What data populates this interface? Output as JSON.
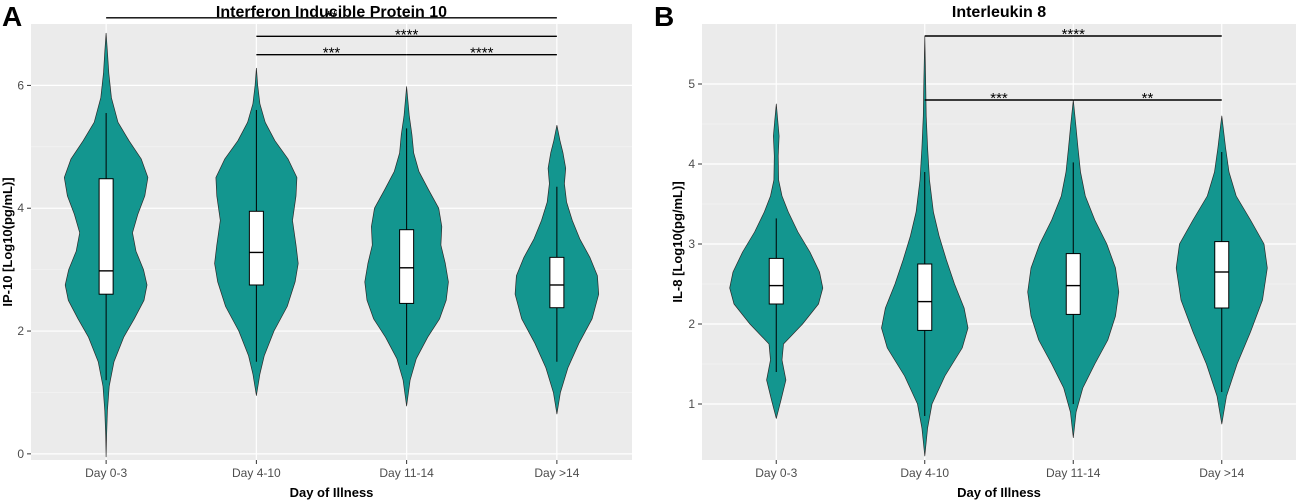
{
  "panels": [
    {
      "letter": "A",
      "chart_data": {
        "type": "violin",
        "title": "Interferon Inducible Protein 10",
        "xlabel": "Day of Illness",
        "ylabel": "IP-10 [Log10(pg/mL)]",
        "categories": [
          "Day 0-3",
          "Day 4-10",
          "Day 11-14",
          "Day >14"
        ],
        "ylim": [
          -0.1,
          7.0
        ],
        "yticks": [
          0,
          2,
          4,
          6
        ],
        "fill_color": "#13968f",
        "panel_bg": "#ebebeb",
        "grid": true,
        "violins": [
          {
            "category": "Day 0-3",
            "y_min": -0.05,
            "y_max": 6.85,
            "q1": 2.6,
            "median": 2.98,
            "q3": 4.48,
            "whisker_low": 1.2,
            "whisker_high": 5.55,
            "density": [
              [
                -0.05,
                0
              ],
              [
                0.3,
                0.01
              ],
              [
                0.7,
                0.03
              ],
              [
                1.1,
                0.07
              ],
              [
                1.5,
                0.18
              ],
              [
                1.9,
                0.4
              ],
              [
                2.2,
                0.64
              ],
              [
                2.5,
                0.86
              ],
              [
                2.75,
                0.93
              ],
              [
                3.0,
                0.85
              ],
              [
                3.3,
                0.68
              ],
              [
                3.6,
                0.6
              ],
              [
                3.9,
                0.72
              ],
              [
                4.2,
                0.88
              ],
              [
                4.5,
                0.95
              ],
              [
                4.8,
                0.8
              ],
              [
                5.1,
                0.52
              ],
              [
                5.4,
                0.27
              ],
              [
                5.8,
                0.12
              ],
              [
                6.2,
                0.06
              ],
              [
                6.55,
                0.03
              ],
              [
                6.85,
                0
              ]
            ]
          },
          {
            "category": "Day 4-10",
            "y_min": 0.95,
            "y_max": 6.28,
            "q1": 2.75,
            "median": 3.28,
            "q3": 3.95,
            "whisker_low": 1.5,
            "whisker_high": 5.6,
            "density": [
              [
                0.95,
                0
              ],
              [
                1.3,
                0.08
              ],
              [
                1.6,
                0.18
              ],
              [
                2.0,
                0.4
              ],
              [
                2.4,
                0.7
              ],
              [
                2.8,
                0.88
              ],
              [
                3.1,
                0.95
              ],
              [
                3.4,
                0.9
              ],
              [
                3.8,
                0.82
              ],
              [
                4.2,
                0.9
              ],
              [
                4.5,
                0.92
              ],
              [
                4.8,
                0.72
              ],
              [
                5.1,
                0.42
              ],
              [
                5.4,
                0.2
              ],
              [
                5.7,
                0.08
              ],
              [
                6.0,
                0.03
              ],
              [
                6.28,
                0
              ]
            ]
          },
          {
            "category": "Day 11-14",
            "y_min": 0.78,
            "y_max": 5.98,
            "q1": 2.45,
            "median": 3.03,
            "q3": 3.65,
            "whisker_low": 1.45,
            "whisker_high": 5.3,
            "density": [
              [
                0.78,
                0
              ],
              [
                1.2,
                0.08
              ],
              [
                1.55,
                0.22
              ],
              [
                1.9,
                0.48
              ],
              [
                2.2,
                0.75
              ],
              [
                2.5,
                0.9
              ],
              [
                2.8,
                0.95
              ],
              [
                3.1,
                0.88
              ],
              [
                3.4,
                0.78
              ],
              [
                3.7,
                0.8
              ],
              [
                4.0,
                0.73
              ],
              [
                4.3,
                0.5
              ],
              [
                4.6,
                0.28
              ],
              [
                4.9,
                0.16
              ],
              [
                5.2,
                0.12
              ],
              [
                5.5,
                0.06
              ],
              [
                5.98,
                0
              ]
            ]
          },
          {
            "category": "Day >14",
            "y_min": 0.65,
            "y_max": 5.35,
            "q1": 2.38,
            "median": 2.75,
            "q3": 3.2,
            "whisker_low": 1.5,
            "whisker_high": 4.35,
            "density": [
              [
                0.65,
                0
              ],
              [
                1.0,
                0.08
              ],
              [
                1.4,
                0.25
              ],
              [
                1.8,
                0.5
              ],
              [
                2.2,
                0.8
              ],
              [
                2.6,
                0.95
              ],
              [
                2.9,
                0.92
              ],
              [
                3.2,
                0.75
              ],
              [
                3.5,
                0.52
              ],
              [
                3.8,
                0.35
              ],
              [
                4.1,
                0.22
              ],
              [
                4.4,
                0.17
              ],
              [
                4.65,
                0.2
              ],
              [
                4.9,
                0.14
              ],
              [
                5.1,
                0.07
              ],
              [
                5.35,
                0
              ]
            ]
          }
        ],
        "significance": [
          {
            "from": "Day 0-3",
            "to": "Day >14",
            "y": 7.1,
            "label": "**"
          },
          {
            "from": "Day 4-10",
            "to": "Day >14",
            "y": 6.8,
            "label": "****"
          },
          {
            "from": "Day 4-10",
            "to": "Day 11-14",
            "y": 6.5,
            "label": "***"
          },
          {
            "from": "Day 11-14",
            "to": "Day >14",
            "y": 6.5,
            "label": "****"
          }
        ]
      }
    },
    {
      "letter": "B",
      "chart_data": {
        "type": "violin",
        "title": "Interleukin 8",
        "xlabel": "Day of Illness",
        "ylabel": "IL-8 [Log10(pg/mL)]",
        "categories": [
          "Day 0-3",
          "Day 4-10",
          "Day 11-14",
          "Day >14"
        ],
        "ylim": [
          0.3,
          5.75
        ],
        "yticks": [
          1,
          2,
          3,
          4,
          5
        ],
        "fill_color": "#13968f",
        "panel_bg": "#ebebeb",
        "grid": true,
        "violins": [
          {
            "category": "Day 0-3",
            "y_min": 0.82,
            "y_max": 4.75,
            "q1": 2.25,
            "median": 2.48,
            "q3": 2.82,
            "whisker_low": 1.4,
            "whisker_high": 3.32,
            "density": [
              [
                0.82,
                0
              ],
              [
                1.05,
                0.1
              ],
              [
                1.3,
                0.2
              ],
              [
                1.55,
                0.12
              ],
              [
                1.75,
                0.15
              ],
              [
                2.0,
                0.55
              ],
              [
                2.25,
                0.88
              ],
              [
                2.45,
                0.97
              ],
              [
                2.65,
                0.9
              ],
              [
                2.9,
                0.7
              ],
              [
                3.15,
                0.45
              ],
              [
                3.4,
                0.25
              ],
              [
                3.6,
                0.12
              ],
              [
                3.8,
                0.05
              ],
              [
                4.1,
                0.04
              ],
              [
                4.35,
                0.06
              ],
              [
                4.55,
                0.03
              ],
              [
                4.75,
                0
              ]
            ]
          },
          {
            "category": "Day 4-10",
            "y_min": 0.35,
            "y_max": 5.6,
            "q1": 1.92,
            "median": 2.28,
            "q3": 2.75,
            "whisker_low": 0.85,
            "whisker_high": 3.9,
            "density": [
              [
                0.35,
                0
              ],
              [
                0.7,
                0.06
              ],
              [
                1.0,
                0.15
              ],
              [
                1.35,
                0.42
              ],
              [
                1.7,
                0.78
              ],
              [
                1.95,
                0.9
              ],
              [
                2.2,
                0.82
              ],
              [
                2.5,
                0.62
              ],
              [
                2.8,
                0.45
              ],
              [
                3.1,
                0.3
              ],
              [
                3.4,
                0.18
              ],
              [
                3.8,
                0.1
              ],
              [
                4.2,
                0.06
              ],
              [
                4.6,
                0.03
              ],
              [
                5.0,
                0.02
              ],
              [
                5.6,
                0
              ]
            ]
          },
          {
            "category": "Day 11-14",
            "y_min": 0.58,
            "y_max": 4.8,
            "q1": 2.12,
            "median": 2.48,
            "q3": 2.88,
            "whisker_low": 1.0,
            "whisker_high": 4.02,
            "density": [
              [
                0.58,
                0
              ],
              [
                0.9,
                0.06
              ],
              [
                1.2,
                0.2
              ],
              [
                1.5,
                0.45
              ],
              [
                1.8,
                0.72
              ],
              [
                2.1,
                0.88
              ],
              [
                2.4,
                0.95
              ],
              [
                2.7,
                0.88
              ],
              [
                3.0,
                0.7
              ],
              [
                3.3,
                0.45
              ],
              [
                3.6,
                0.25
              ],
              [
                3.9,
                0.15
              ],
              [
                4.2,
                0.1
              ],
              [
                4.5,
                0.05
              ],
              [
                4.8,
                0
              ]
            ]
          },
          {
            "category": "Day >14",
            "y_min": 0.75,
            "y_max": 4.6,
            "q1": 2.2,
            "median": 2.65,
            "q3": 3.03,
            "whisker_low": 1.15,
            "whisker_high": 4.15,
            "density": [
              [
                0.75,
                0
              ],
              [
                1.1,
                0.1
              ],
              [
                1.5,
                0.32
              ],
              [
                1.9,
                0.6
              ],
              [
                2.3,
                0.85
              ],
              [
                2.7,
                0.95
              ],
              [
                3.0,
                0.88
              ],
              [
                3.3,
                0.6
              ],
              [
                3.6,
                0.3
              ],
              [
                3.9,
                0.15
              ],
              [
                4.2,
                0.08
              ],
              [
                4.4,
                0.04
              ],
              [
                4.6,
                0
              ]
            ]
          }
        ],
        "significance": [
          {
            "from": "Day 4-10",
            "to": "Day >14",
            "y": 5.6,
            "label": "****"
          },
          {
            "from": "Day 4-10",
            "to": "Day 11-14",
            "y": 4.8,
            "label": "***"
          },
          {
            "from": "Day 11-14",
            "to": "Day >14",
            "y": 4.8,
            "label": "**"
          }
        ]
      }
    }
  ]
}
